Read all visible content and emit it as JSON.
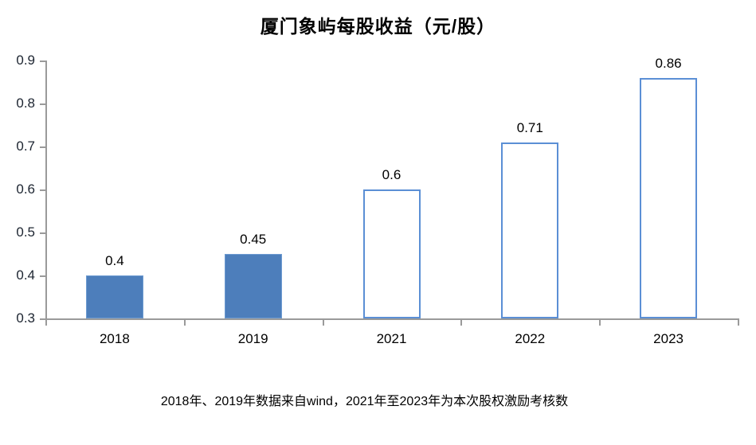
{
  "title": "厦门象屿每股收益（元/股）",
  "footnote": "2018年、2019年数据来自wind，2021年至2023年为本次股权激励考核数",
  "colors": {
    "solid_fill": "#4d7ebb",
    "solid_border": "#6d9bd1",
    "outline_fill": "#ffffff",
    "outline_border": "#5b8fd5",
    "axis": "#9a9a9a",
    "axis_label_text": "#1c2430",
    "text": "#000000",
    "background": "#ffffff"
  },
  "chart_data": {
    "type": "bar",
    "title": "厦门象屿每股收益（元/股）",
    "categories": [
      "2018",
      "2019",
      "2021",
      "2022",
      "2023"
    ],
    "values": [
      0.4,
      0.45,
      0.6,
      0.71,
      0.86
    ],
    "data_labels": [
      "0.4",
      "0.45",
      "0.6",
      "0.71",
      "0.86"
    ],
    "bar_styles": [
      "solid",
      "solid",
      "outline",
      "outline",
      "outline"
    ],
    "ylim": [
      0.3,
      0.9
    ],
    "yticks": [
      0.3,
      0.4,
      0.5,
      0.6,
      0.7,
      0.8,
      0.9
    ],
    "ytick_labels": [
      "0.3",
      "0.4",
      "0.5",
      "0.6",
      "0.7",
      "0.8",
      "0.9"
    ],
    "xlabel": "",
    "ylabel": "",
    "grid": false,
    "legend": "none",
    "annotation": "2018年、2019年数据来自wind，2021年至2023年为本次股权激励考核数"
  }
}
